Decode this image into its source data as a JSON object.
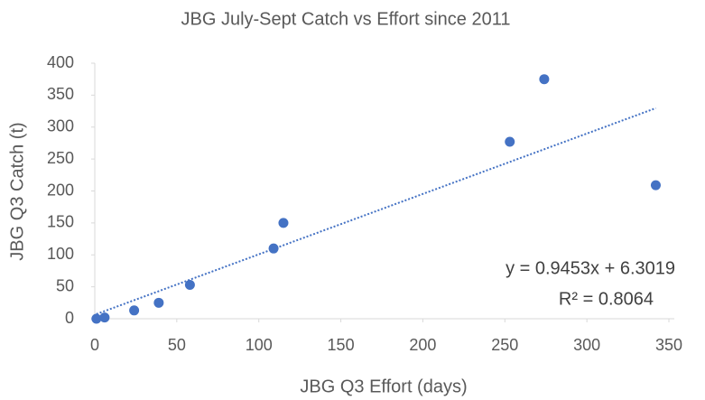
{
  "chart_data": {
    "type": "scatter",
    "title": "JBG July-Sept Catch vs Effort since 2011",
    "x_label": "JBG Q3 Effort (days)",
    "y_label": "JBG Q3 Catch (t)",
    "x": [
      1,
      6,
      24,
      39,
      58,
      109,
      115,
      253,
      274,
      342
    ],
    "values": [
      0,
      2,
      13,
      25,
      53,
      110,
      150,
      277,
      375,
      209
    ],
    "color": "#4472c4",
    "xlim": [
      0,
      350
    ],
    "xticks": [
      0,
      50,
      100,
      150,
      200,
      250,
      300,
      350
    ],
    "ylim": [
      0,
      400
    ],
    "yticks": [
      0,
      50,
      100,
      150,
      200,
      250,
      300,
      350,
      400
    ],
    "grid": false,
    "trendline": {
      "slope": 0.9453,
      "intercept": 6.3019,
      "equation": "y = 0.9453x + 6.3019",
      "r_squared": "R² = 0.8064"
    }
  }
}
